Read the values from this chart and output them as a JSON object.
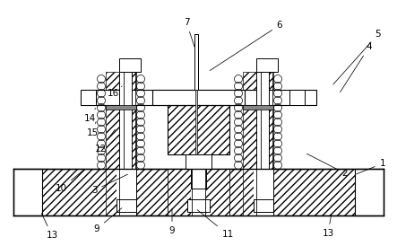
{
  "figsize": [
    4.43,
    2.74
  ],
  "dpi": 100,
  "bg": "#ffffff",
  "lc": "#000000",
  "gray": "#aaaaaa",
  "labels": [
    [
      "1",
      427,
      182,
      395,
      195
    ],
    [
      "2",
      385,
      193,
      340,
      170
    ],
    [
      "3",
      105,
      212,
      145,
      193
    ],
    [
      "4",
      412,
      52,
      378,
      105
    ],
    [
      "5",
      422,
      38,
      370,
      96
    ],
    [
      "6",
      312,
      28,
      232,
      80
    ],
    [
      "7",
      208,
      25,
      218,
      55
    ],
    [
      "9",
      108,
      255,
      138,
      230
    ],
    [
      "9",
      192,
      257,
      192,
      230
    ],
    [
      "10",
      68,
      210,
      95,
      188
    ],
    [
      "11",
      254,
      261,
      218,
      232
    ],
    [
      "12",
      112,
      166,
      130,
      142
    ],
    [
      "13",
      58,
      262,
      45,
      235
    ],
    [
      "13",
      366,
      260,
      370,
      237
    ],
    [
      "14",
      100,
      132,
      108,
      118
    ],
    [
      "15",
      103,
      148,
      108,
      133
    ],
    [
      "16",
      126,
      104,
      136,
      96
    ]
  ]
}
